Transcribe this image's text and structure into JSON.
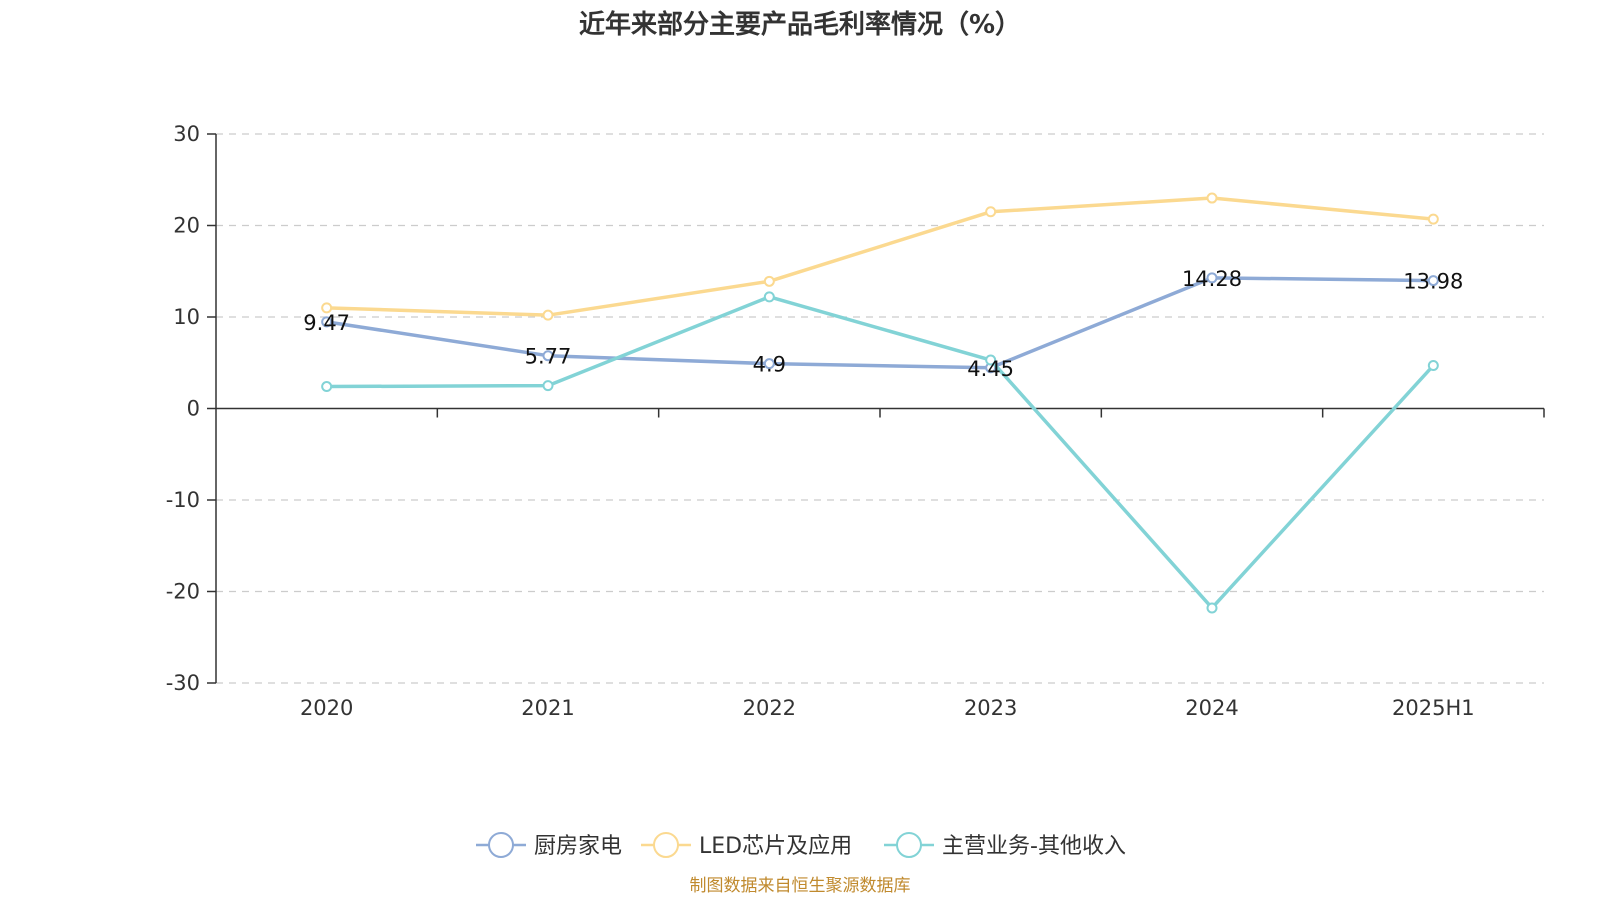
{
  "chart_data": {
    "type": "line",
    "title": "近年来部分主要产品毛利率情况（%）",
    "xlabel": "",
    "ylabel": "",
    "categories": [
      "2020",
      "2021",
      "2022",
      "2023",
      "2024",
      "2025H1"
    ],
    "ylim": [
      -30,
      30
    ],
    "yticks": [
      30,
      20,
      10,
      0,
      -10,
      -20,
      -30
    ],
    "grid": "horizontal-dashed",
    "legend_position": "bottom",
    "series": [
      {
        "name": "厨房家电",
        "color": "#8eaad6",
        "values": [
          9.47,
          5.77,
          4.9,
          4.45,
          14.28,
          13.98
        ],
        "labels": [
          "9.47",
          "5.77",
          "4.9",
          "4.45",
          "14.28",
          "13.98"
        ]
      },
      {
        "name": "LED芯片及应用",
        "color": "#fbd990",
        "values": [
          11.0,
          10.2,
          13.9,
          21.5,
          23.0,
          20.7
        ],
        "labels": []
      },
      {
        "name": "主营业务-其他收入",
        "color": "#82d3d6",
        "values": [
          2.4,
          2.5,
          12.2,
          5.3,
          -21.8,
          4.7
        ],
        "labels": []
      }
    ],
    "source": "制图数据来自恒生聚源数据库"
  }
}
